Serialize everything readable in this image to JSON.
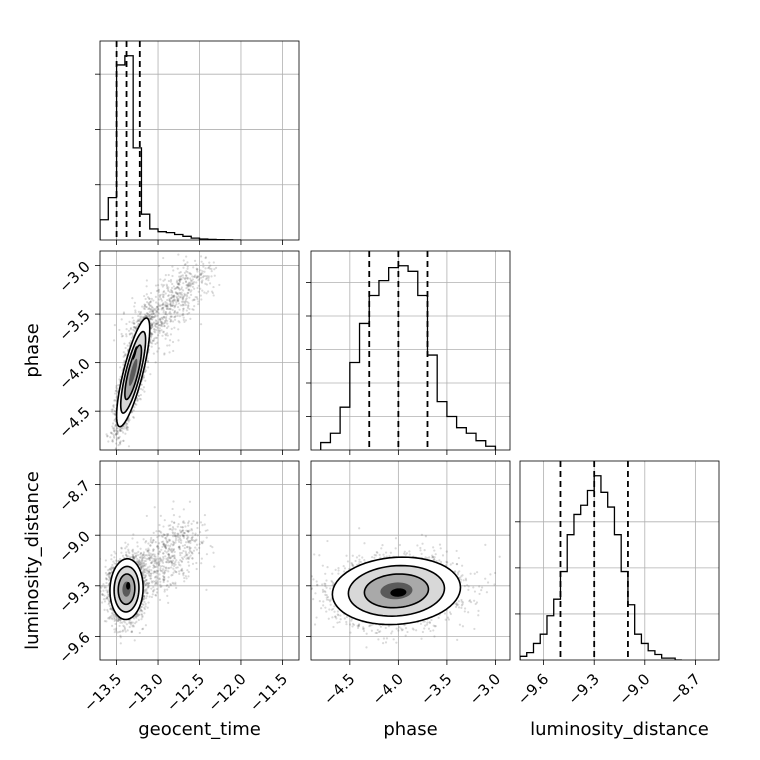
{
  "chart_data": {
    "type": "corner",
    "parameters": [
      "geocent_time",
      "phase",
      "luminosity_distance"
    ],
    "grid": true,
    "colors": {
      "line": "#000000",
      "grid": "#b0b0b0",
      "scatter": "#555555",
      "density": "#000000"
    },
    "axes": {
      "geocent_time": {
        "label": "geocent_time",
        "range": [
          -13.7,
          -11.3
        ],
        "ticks": [
          -13.5,
          -13.0,
          -12.5,
          -12.0,
          -11.5
        ],
        "tick_labels": [
          "−13.5",
          "−13.0",
          "−12.5",
          "−12.0",
          "−11.5"
        ]
      },
      "phase": {
        "label": "phase",
        "range": [
          -4.9,
          -2.85
        ],
        "ticks": [
          -4.5,
          -4.0,
          -3.5,
          -3.0
        ],
        "tick_labels": [
          "−4.5",
          "−4.0",
          "−3.5",
          "−3.0"
        ]
      },
      "luminosity_distance": {
        "label": "luminosity_distance",
        "range": [
          -9.74,
          -8.56
        ],
        "ticks": [
          -9.6,
          -9.3,
          -9.0,
          -8.7
        ],
        "tick_labels": [
          "−9.6",
          "−9.3",
          "−9.0",
          "−8.7"
        ]
      }
    },
    "histograms": {
      "geocent_time": {
        "bin_edges": [
          -13.7,
          -13.6,
          -13.5,
          -13.4,
          -13.3,
          -13.2,
          -13.1,
          -13.0,
          -12.9,
          -12.8,
          -12.7,
          -12.6,
          -12.5,
          -12.4,
          -12.3,
          -12.2,
          -12.1,
          -12.0
        ],
        "counts": [
          0.11,
          0.23,
          0.95,
          1.0,
          0.5,
          0.14,
          0.06,
          0.045,
          0.04,
          0.03,
          0.02,
          0.01,
          0.005,
          0.003,
          0.002,
          0.001,
          0.0
        ],
        "quantiles": [
          -13.5,
          -13.38,
          -13.22
        ],
        "yticks": [
          0.3,
          0.6,
          0.9
        ]
      },
      "phase": {
        "bin_edges": [
          -4.8,
          -4.7,
          -4.6,
          -4.5,
          -4.4,
          -4.3,
          -4.2,
          -4.1,
          -4.0,
          -3.9,
          -3.8,
          -3.7,
          -3.6,
          -3.5,
          -3.4,
          -3.3,
          -3.2,
          -3.1,
          -3.0
        ],
        "counts": [
          0.04,
          0.09,
          0.23,
          0.47,
          0.68,
          0.83,
          0.91,
          0.98,
          0.99,
          0.96,
          0.83,
          0.51,
          0.26,
          0.18,
          0.12,
          0.09,
          0.05,
          0.02
        ],
        "quantiles": [
          -4.3,
          -4.0,
          -3.7
        ],
        "yticks": [
          0.18,
          0.36,
          0.54,
          0.72,
          0.9
        ]
      },
      "luminosity_distance": {
        "bin_edges": [
          -9.74,
          -9.7,
          -9.66,
          -9.62,
          -9.58,
          -9.54,
          -9.5,
          -9.46,
          -9.42,
          -9.38,
          -9.34,
          -9.3,
          -9.26,
          -9.22,
          -9.18,
          -9.14,
          -9.1,
          -9.06,
          -9.02,
          -8.98,
          -8.94,
          -8.9,
          -8.86,
          -8.82,
          -8.78
        ],
        "counts": [
          0.02,
          0.04,
          0.09,
          0.14,
          0.24,
          0.33,
          0.48,
          0.68,
          0.79,
          0.84,
          0.92,
          1.0,
          0.91,
          0.83,
          0.68,
          0.48,
          0.3,
          0.14,
          0.09,
          0.05,
          0.03,
          0.01,
          0.01,
          0.0
        ],
        "quantiles": [
          -9.5,
          -9.3,
          -9.1
        ],
        "yticks": [
          0.25,
          0.5,
          0.75
        ]
      }
    },
    "pairs": [
      {
        "x": "geocent_time",
        "y": "phase",
        "center": [
          -13.3,
          -4.1
        ],
        "sd": [
          0.1,
          0.28
        ],
        "corr": 0.8,
        "peak": [
          -13.28,
          -3.9
        ],
        "tail": {
          "from": [
            -13.25,
            -3.8
          ],
          "to": [
            -12.5,
            -3.05
          ],
          "spread": [
            0.14,
            0.1
          ]
        }
      },
      {
        "x": "geocent_time",
        "y": "luminosity_distance",
        "center": [
          -13.38,
          -9.32
        ],
        "sd": [
          0.1,
          0.09
        ],
        "corr": 0.05,
        "peak": [
          -13.36,
          -9.3
        ],
        "tail": {
          "from": [
            -13.3,
            -9.3
          ],
          "to": [
            -12.6,
            -9.0
          ],
          "spread": [
            0.15,
            0.08
          ]
        }
      },
      {
        "x": "phase",
        "y": "luminosity_distance",
        "center": [
          -4.02,
          -9.33
        ],
        "sd": [
          0.33,
          0.1
        ],
        "corr": 0.1,
        "peak": [
          -4.0,
          -9.34
        ],
        "tail": null
      }
    ]
  }
}
